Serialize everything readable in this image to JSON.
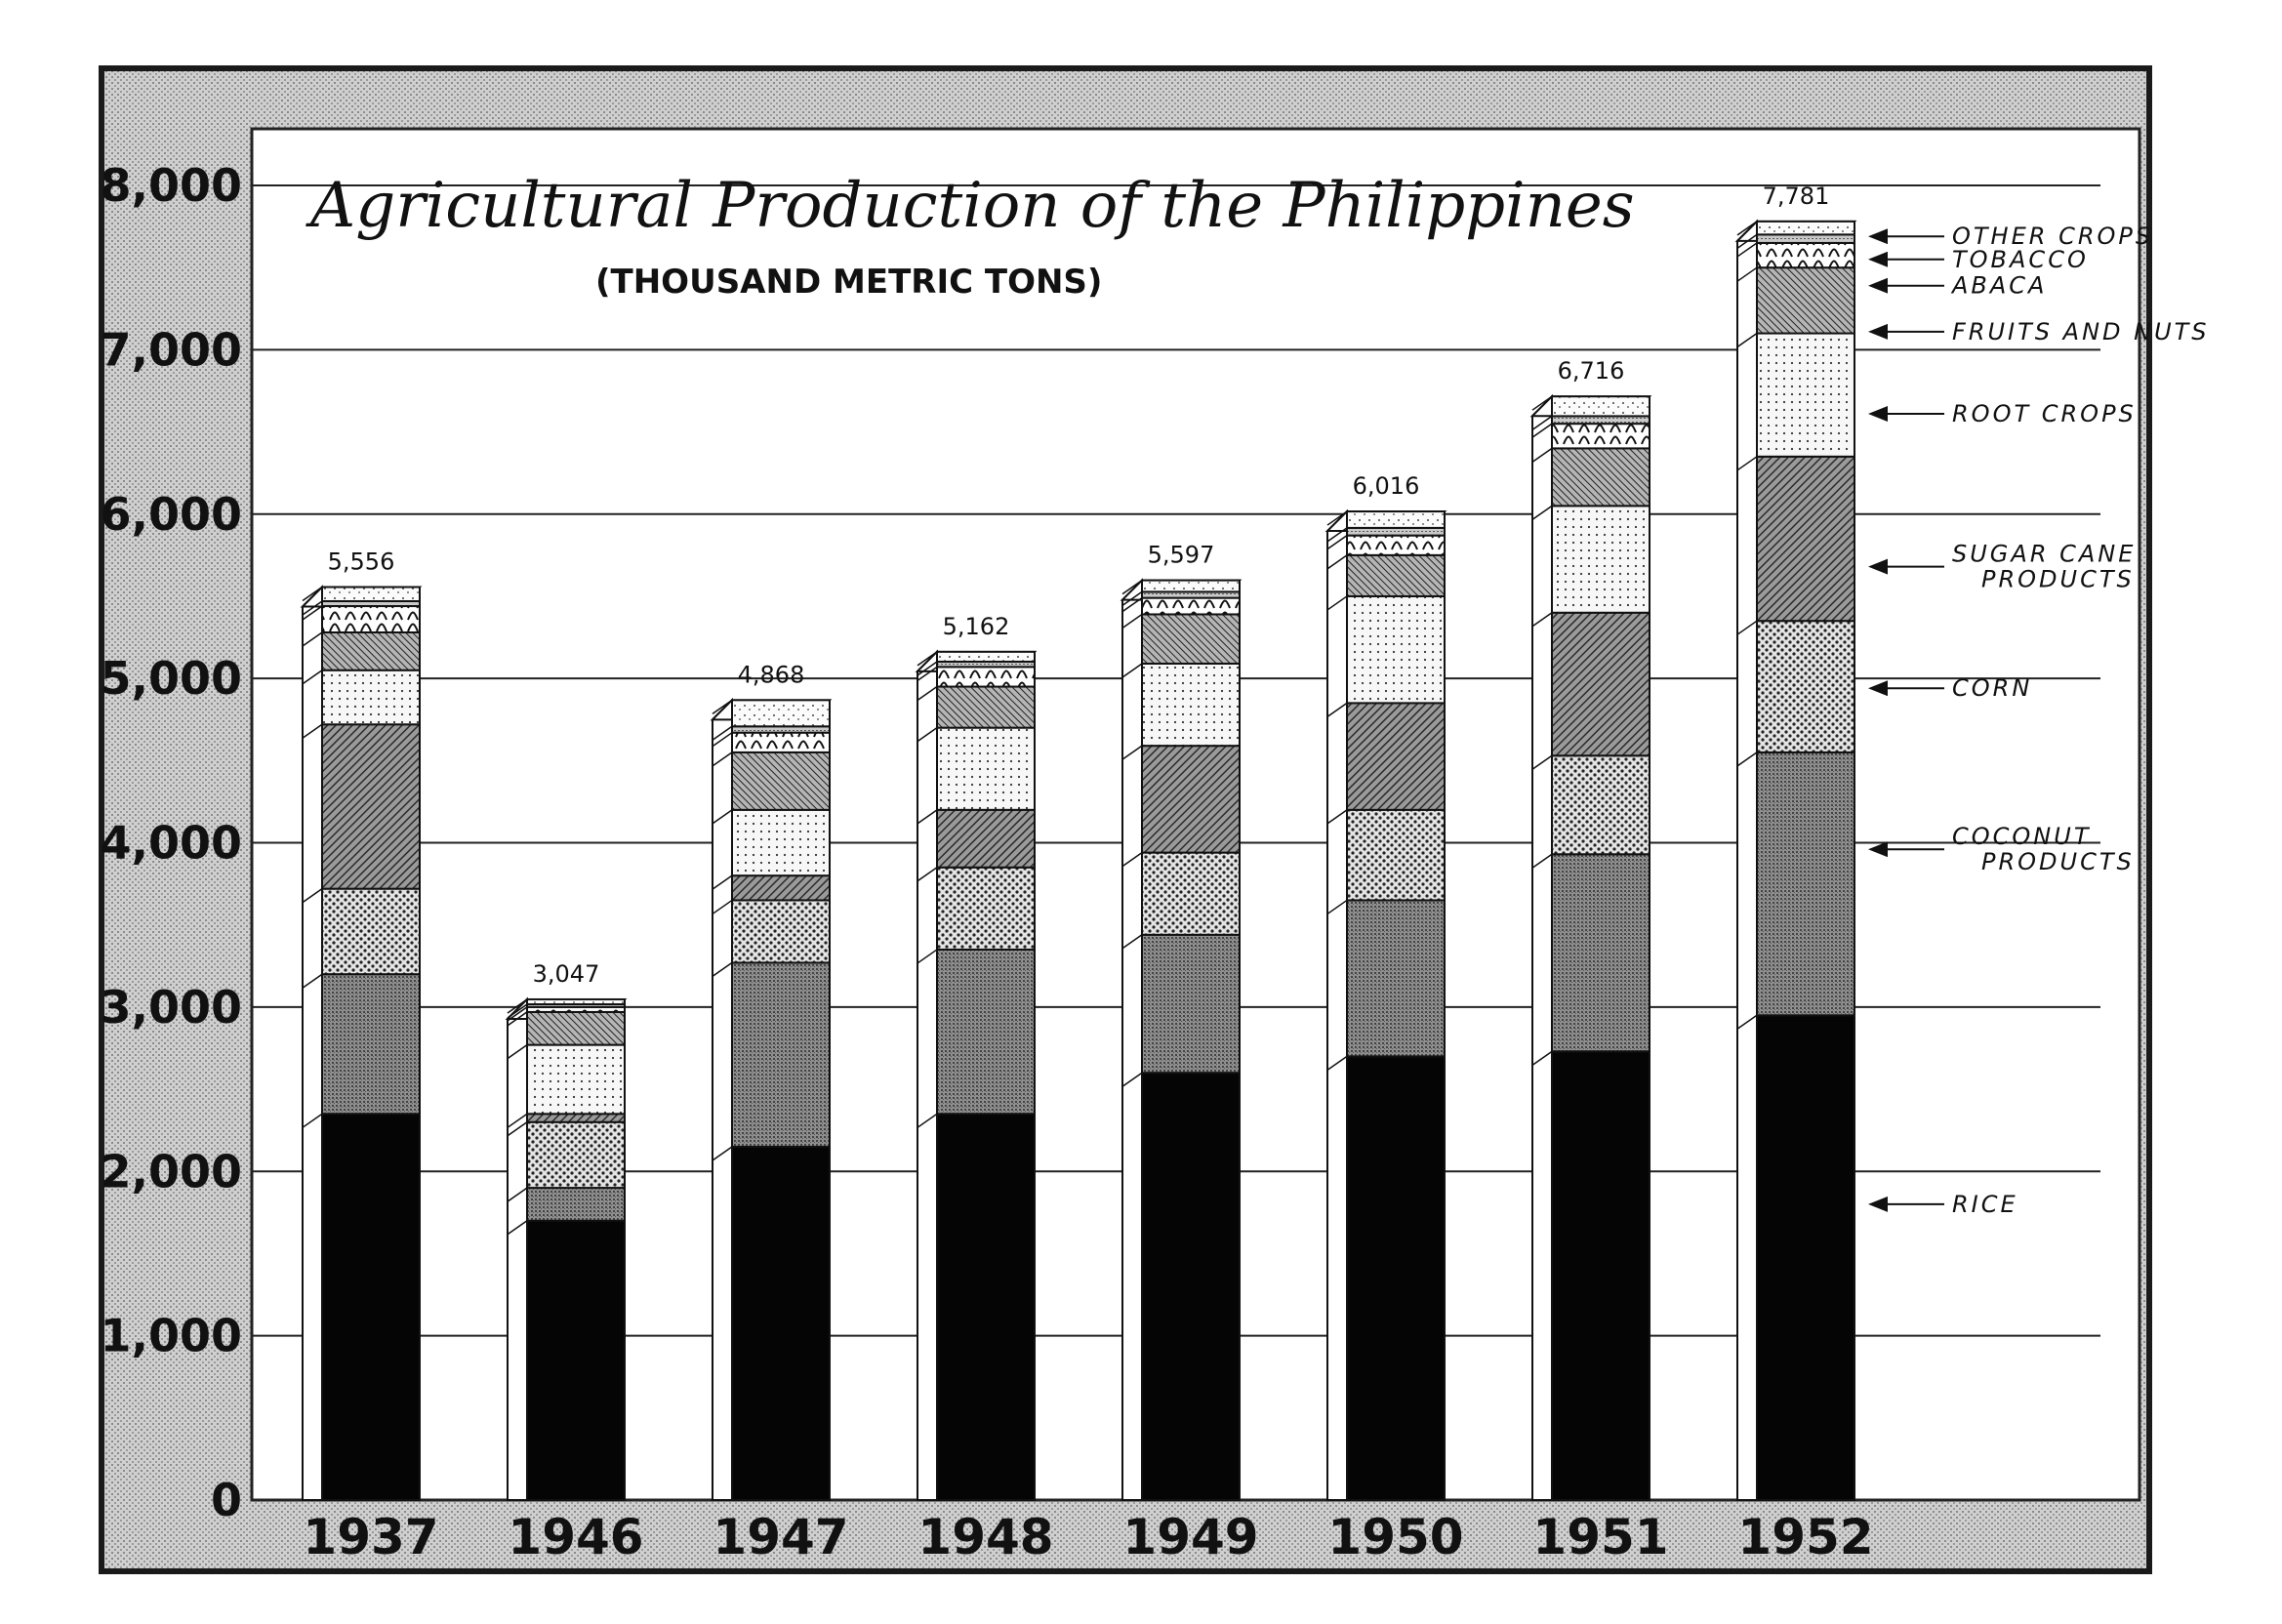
{
  "chart_data": {
    "type": "bar",
    "stacked": true,
    "title": "Agricultural Production of the Philippines",
    "subtitle": "(THOUSAND METRIC TONS)",
    "ylim": [
      0,
      8000
    ],
    "yticks": [
      0,
      1000,
      2000,
      3000,
      4000,
      5000,
      6000,
      7000,
      8000
    ],
    "ytick_labels": [
      "0",
      "1,000",
      "2,000",
      "3,000",
      "4,000",
      "5,000",
      "6,000",
      "7,000",
      "8,000"
    ],
    "categories": [
      "1937",
      "1946",
      "1947",
      "1948",
      "1949",
      "1950",
      "1951",
      "1952"
    ],
    "totals": [
      5556,
      3047,
      4868,
      5162,
      5597,
      6016,
      6716,
      7781
    ],
    "total_labels": [
      "5,556",
      "3,047",
      "4,868",
      "5,162",
      "5,597",
      "6,016",
      "6,716",
      "7,781"
    ],
    "grid": true,
    "legend_placement": "right",
    "series": [
      {
        "name": "RICE",
        "label": "RICE",
        "values": [
          2350,
          1700,
          2150,
          2350,
          2600,
          2700,
          2730,
          2950
        ],
        "pattern": "solid-black"
      },
      {
        "name": "COCONUT PRODUCTS",
        "label": "COCONUT\nPRODUCTS",
        "values": [
          850,
          200,
          1120,
          1000,
          840,
          950,
          1200,
          1600
        ],
        "pattern": "dense-grey"
      },
      {
        "name": "CORN",
        "label": "CORN",
        "values": [
          520,
          400,
          380,
          500,
          500,
          550,
          600,
          800
        ],
        "pattern": "dots"
      },
      {
        "name": "SUGAR CANE PRODUCTS",
        "label": "SUGAR CANE\nPRODUCTS",
        "values": [
          1000,
          50,
          150,
          350,
          650,
          650,
          870,
          1000
        ],
        "pattern": "diagonal-hatch"
      },
      {
        "name": "ROOT CROPS",
        "label": "ROOT CROPS",
        "values": [
          330,
          420,
          400,
          500,
          500,
          650,
          650,
          750
        ],
        "pattern": "light-dots"
      },
      {
        "name": "FRUITS AND NUTS",
        "label": "FRUITS AND NUTS",
        "values": [
          230,
          200,
          350,
          250,
          300,
          250,
          350,
          400
        ],
        "pattern": "fine-hatch"
      },
      {
        "name": "ABACA",
        "label": "ABACA",
        "values": [
          160,
          30,
          120,
          120,
          100,
          120,
          150,
          150
        ],
        "pattern": "wave"
      },
      {
        "name": "TOBACCO",
        "label": "TOBACCO",
        "values": [
          30,
          17,
          38,
          32,
          37,
          46,
          46,
          51
        ],
        "pattern": "thin-grey"
      },
      {
        "name": "OTHER CROPS",
        "label": "OTHER CROPS",
        "values": [
          86,
          30,
          160,
          60,
          70,
          100,
          120,
          80
        ],
        "pattern": "sparse-dots"
      }
    ]
  },
  "colors": {
    "frame": "#bdbdbd",
    "frame_border": "#1a1a1a",
    "plot_bg": "#ffffff",
    "ink": "#111111"
  }
}
